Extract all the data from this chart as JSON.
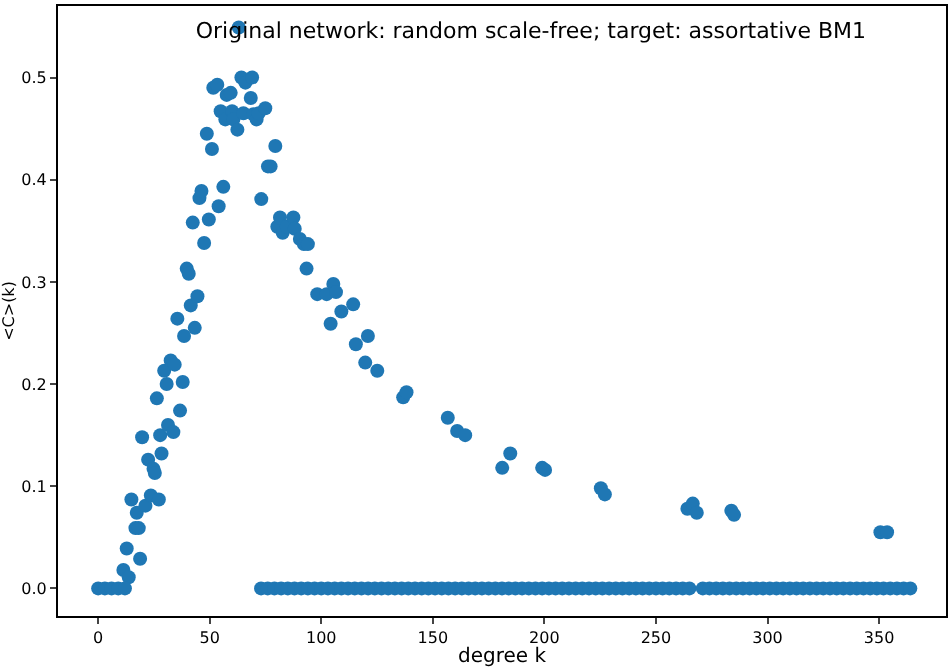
{
  "chart_data": {
    "type": "scatter",
    "title": "Original network: random scale-free; target: assortative BM1",
    "xlabel": "degree k",
    "ylabel": "<C>(k)",
    "xlim": [
      -18,
      380
    ],
    "ylim": [
      -0.027,
      0.57
    ],
    "xticks": [
      0,
      50,
      100,
      150,
      200,
      250,
      300,
      350
    ],
    "yticks": [
      {
        "value": 0,
        "label": "0.0"
      },
      0.1,
      0.2,
      0.3,
      0.4,
      0.5
    ],
    "grid": false,
    "marker": "circle",
    "series": [
      {
        "color": "#1f77b4",
        "x": [
          11.3,
          12.8,
          13.7,
          14.9,
          16.7,
          17.3,
          18.2,
          18.8,
          19.7,
          21.2,
          22.4,
          23.6,
          24.8,
          25.4,
          26.3,
          27.2,
          27.8,
          28.4,
          29.6,
          30.7,
          31.3,
          32.5,
          33.7,
          34.3,
          35.5,
          36.7,
          37.9,
          38.5,
          39.7,
          40.6,
          41.5,
          42.4,
          43.3,
          44.5,
          45.4,
          46.3,
          47.5,
          48.7,
          49.6,
          51.0,
          51.6,
          53.4,
          54.0,
          54.9,
          56.1,
          57.0,
          57.6,
          59.4,
          60.0,
          60.6,
          62.4,
          63.0,
          64.2,
          65.1,
          66.0,
          68.4,
          69.0,
          69.6,
          71.0,
          71.9,
          73.1,
          74.9,
          76.1,
          77.3,
          79.4,
          80.3,
          81.5,
          82.7,
          84.5,
          87.5,
          88.1,
          90.4,
          92.2,
          94.0,
          93.4,
          98.2,
          102.4,
          104.2,
          105.4,
          106.6,
          109.0,
          114.3,
          115.5,
          119.7,
          120.9,
          125.1,
          136.7,
          138.2,
          156.7,
          160.9,
          164.5,
          181.1,
          184.7,
          199.0,
          200.3,
          225.3,
          227.1,
          264.1,
          266.5,
          268.3,
          283.8,
          285.0,
          350.6,
          353.6
        ],
        "values": [
          0.018,
          0.039,
          0.011,
          0.087,
          0.059,
          0.074,
          0.059,
          0.029,
          0.148,
          0.081,
          0.126,
          0.091,
          0.117,
          0.113,
          0.186,
          0.087,
          0.15,
          0.132,
          0.213,
          0.2,
          0.16,
          0.223,
          0.153,
          0.219,
          0.264,
          0.174,
          0.202,
          0.247,
          0.313,
          0.308,
          0.277,
          0.358,
          0.255,
          0.286,
          0.382,
          0.389,
          0.338,
          0.445,
          0.361,
          0.43,
          0.49,
          0.493,
          0.374,
          0.467,
          0.393,
          0.459,
          0.483,
          0.485,
          0.467,
          0.459,
          0.449,
          0.549,
          0.5,
          0.465,
          0.495,
          0.48,
          0.5,
          0.464,
          0.459,
          0.465,
          0.381,
          0.47,
          0.413,
          0.413,
          0.433,
          0.354,
          0.363,
          0.348,
          0.354,
          0.363,
          0.352,
          0.342,
          0.337,
          0.337,
          0.313,
          0.288,
          0.288,
          0.259,
          0.298,
          0.29,
          0.271,
          0.278,
          0.239,
          0.221,
          0.247,
          0.213,
          0.187,
          0.192,
          0.167,
          0.154,
          0.15,
          0.118,
          0.132,
          0.118,
          0.116,
          0.098,
          0.092,
          0.078,
          0.083,
          0.074,
          0.076,
          0.072,
          0.055,
          0.055
        ]
      },
      {
        "color": "#1f77b4",
        "x": [
          0,
          3,
          6,
          9,
          12,
          73,
          76,
          79,
          82,
          85,
          88,
          91,
          94,
          97,
          100,
          103,
          106,
          109,
          112,
          115,
          118,
          121,
          124,
          127,
          130,
          133,
          136,
          139,
          142,
          145,
          148,
          151,
          154,
          157,
          160,
          163,
          166,
          169,
          172,
          175,
          178,
          181,
          184,
          187,
          190,
          193,
          196,
          199,
          202,
          205,
          208,
          211,
          214,
          217,
          220,
          223,
          226,
          229,
          232,
          235,
          238,
          241,
          244,
          247,
          250,
          253,
          256,
          259,
          262,
          265,
          271,
          274,
          277,
          280,
          283,
          286,
          289,
          292,
          295,
          298,
          301,
          304,
          307,
          310,
          313,
          316,
          319,
          322,
          325,
          328,
          331,
          334,
          337,
          340,
          343,
          346,
          349,
          352,
          355,
          358,
          361,
          364
        ],
        "values": [
          0,
          0,
          0,
          0,
          0,
          0,
          0,
          0,
          0,
          0,
          0,
          0,
          0,
          0,
          0,
          0,
          0,
          0,
          0,
          0,
          0,
          0,
          0,
          0,
          0,
          0,
          0,
          0,
          0,
          0,
          0,
          0,
          0,
          0,
          0,
          0,
          0,
          0,
          0,
          0,
          0,
          0,
          0,
          0,
          0,
          0,
          0,
          0,
          0,
          0,
          0,
          0,
          0,
          0,
          0,
          0,
          0,
          0,
          0,
          0,
          0,
          0,
          0,
          0,
          0,
          0,
          0,
          0,
          0,
          0,
          0,
          0,
          0,
          0,
          0,
          0,
          0,
          0,
          0,
          0,
          0,
          0,
          0,
          0,
          0,
          0,
          0,
          0,
          0,
          0,
          0,
          0,
          0,
          0,
          0,
          0,
          0,
          0,
          0,
          0,
          0,
          0
        ]
      }
    ]
  }
}
